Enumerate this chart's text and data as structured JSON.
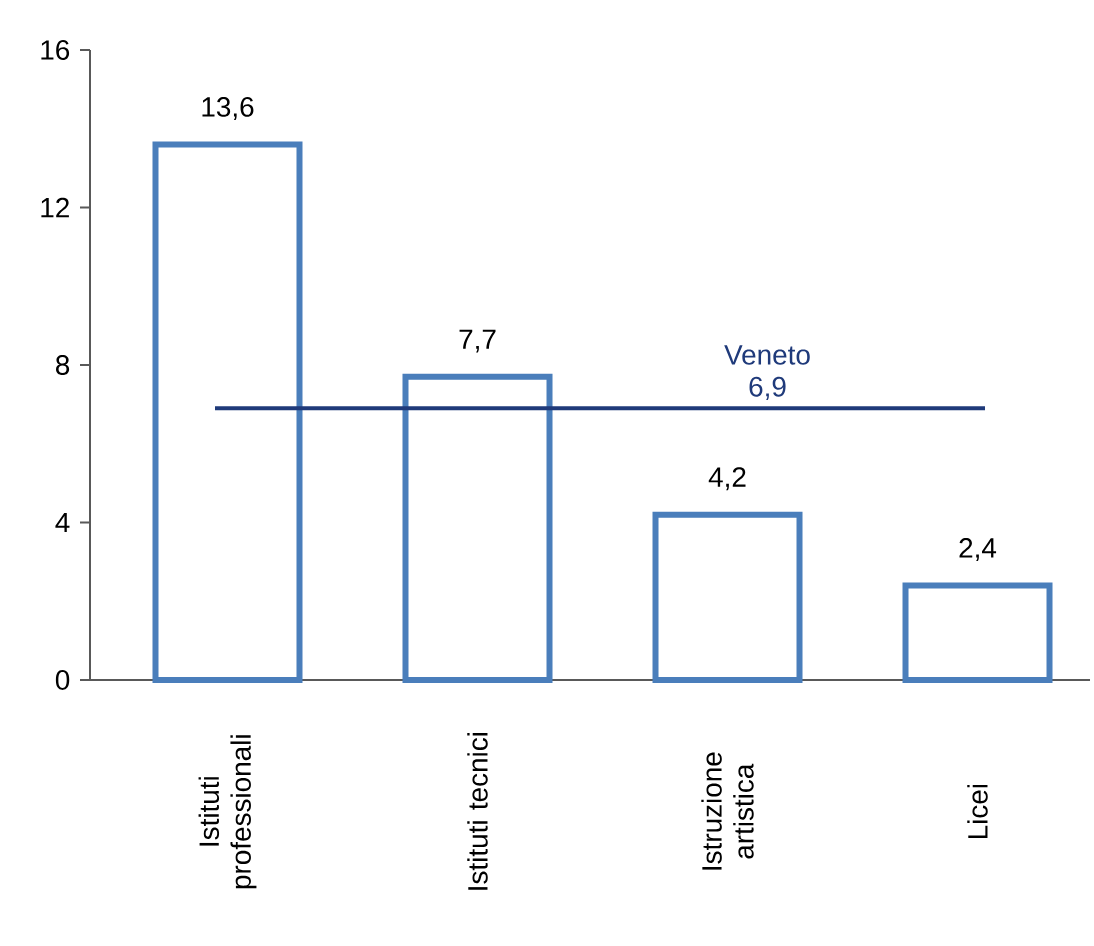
{
  "chart_data": {
    "type": "bar",
    "categories": [
      "Istituti professionali",
      "Istituti tecnici",
      "Istruzione artistica",
      "Licei"
    ],
    "values": [
      13.6,
      7.7,
      4.2,
      2.4
    ],
    "value_labels": [
      "13,6",
      "7,7",
      "4,2",
      "2,4"
    ],
    "color": "#4a7ebb",
    "ylim": [
      0,
      16
    ],
    "yticks": [
      0,
      4,
      8,
      12,
      16
    ],
    "ref_lines": [
      {
        "axis": "y",
        "value": 6.9,
        "label": "Veneto 6,9",
        "color": "#1f3a7a"
      }
    ],
    "grid": false
  }
}
